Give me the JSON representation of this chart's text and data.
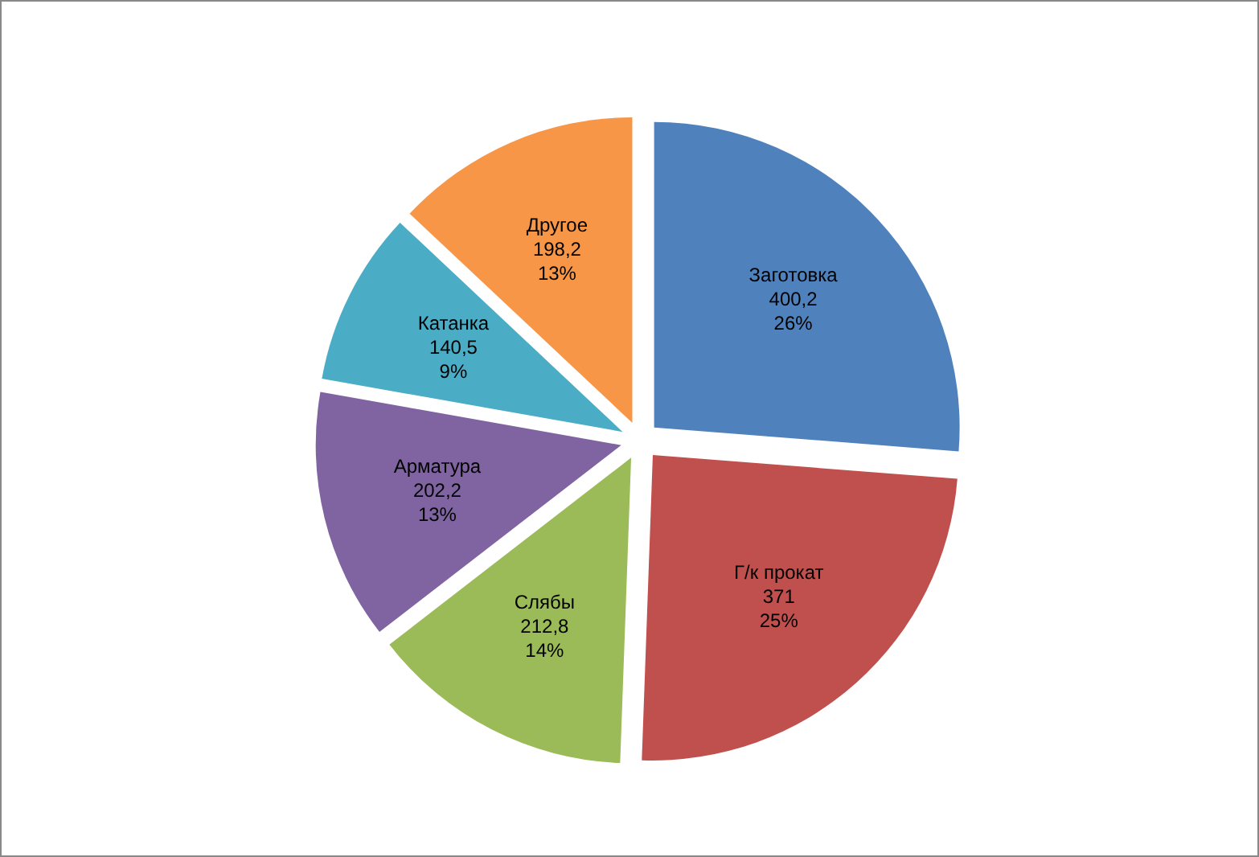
{
  "chart_data": {
    "type": "pie",
    "categories": [
      "Заготовка",
      "Г/к прокат",
      "Слябы",
      "Арматура",
      "Катанка",
      "Другое"
    ],
    "values": [
      400.2,
      371,
      212.8,
      202.2,
      140.5,
      198.2
    ],
    "value_labels": [
      "400,2\n26%",
      "371\n25%",
      "212,8\n14%",
      "202,2\n13%",
      "140,5\n9%",
      "198,2\n13%"
    ],
    "colors": [
      "#4f81bd",
      "#c0504d",
      "#9bbb59",
      "#8064a2",
      "#4bacc6",
      "#f79646"
    ],
    "legend": false
  }
}
